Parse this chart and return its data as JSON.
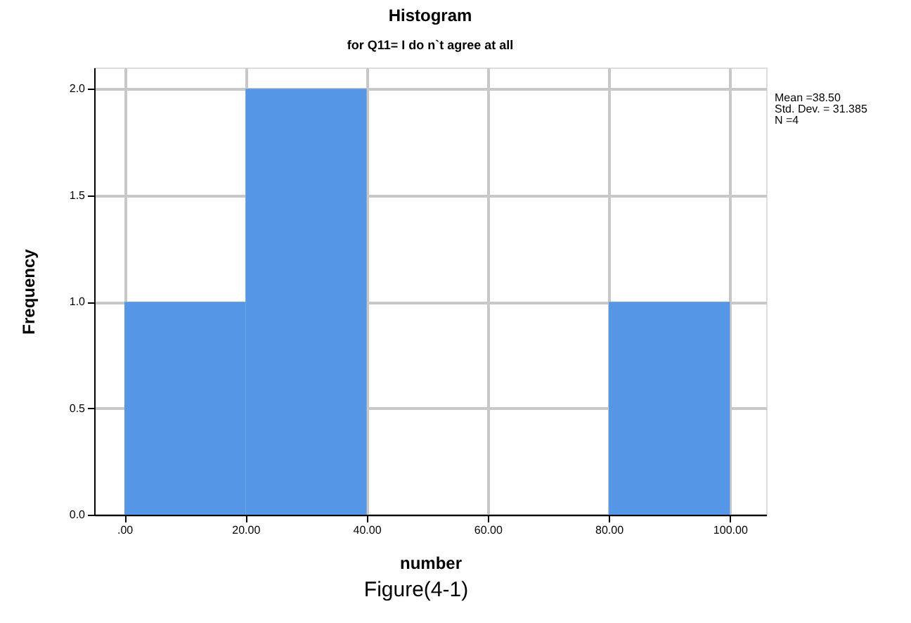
{
  "chart_data": {
    "type": "histogram",
    "title": "Histogram",
    "subtitle": "for Q11= I do n`t agree at all",
    "xlabel": "number",
    "ylabel": "Frequency",
    "bins": [
      0,
      20,
      40,
      60,
      80,
      100
    ],
    "values": [
      1,
      2,
      0,
      0,
      1
    ],
    "color": "#5596e6",
    "xlim": [
      -5,
      106
    ],
    "ylim": [
      0,
      2.1
    ],
    "xticks": [
      {
        "value": 0,
        "label": ".00"
      },
      {
        "value": 20,
        "label": "20.00"
      },
      {
        "value": 40,
        "label": "40.00"
      },
      {
        "value": 60,
        "label": "60.00"
      },
      {
        "value": 80,
        "label": "80.00"
      },
      {
        "value": 100,
        "label": "100.00"
      }
    ],
    "yticks": [
      {
        "value": 0,
        "label": "0.0"
      },
      {
        "value": 0.5,
        "label": "0.5"
      },
      {
        "value": 1,
        "label": "1.0"
      },
      {
        "value": 1.5,
        "label": "1.5"
      },
      {
        "value": 2,
        "label": "2.0"
      }
    ],
    "grid": true,
    "annotations": [
      "Mean =38.50",
      "Std. Dev. = 31.385",
      "N =4",
      "Figure(4-1)"
    ]
  }
}
